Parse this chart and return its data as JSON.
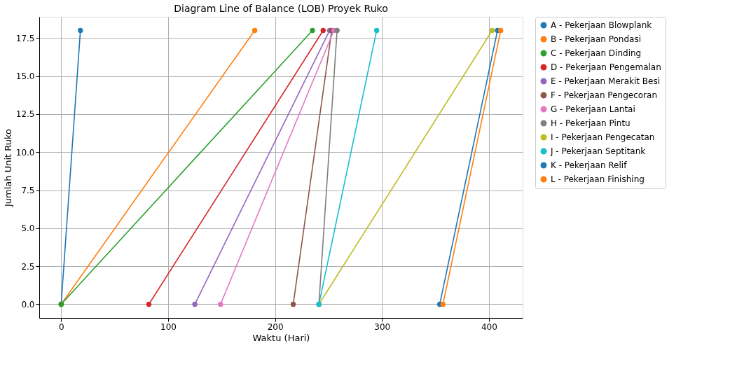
{
  "chart_data": {
    "type": "line",
    "title": "Diagram Line of Balance (LOB) Proyek Ruko",
    "xlabel": "Waktu (Hari)",
    "ylabel": "Jumlah Unit Ruko",
    "series": [
      {
        "name": "A - Pekerjaan Blowplank",
        "color": "#1f77b4",
        "x": [
          0,
          18
        ],
        "values": [
          0,
          18
        ]
      },
      {
        "name": "B - Pekerjaan Pondasi",
        "color": "#ff7f0e",
        "x": [
          0,
          181
        ],
        "values": [
          0,
          18
        ]
      },
      {
        "name": "C - Pekerjaan Dinding",
        "color": "#2ca02c",
        "x": [
          0,
          235
        ],
        "values": [
          0,
          18
        ]
      },
      {
        "name": "D - Pekerjaan Pengemalan",
        "color": "#d62728",
        "x": [
          82,
          245
        ],
        "values": [
          0,
          18
        ]
      },
      {
        "name": "E - Pekerjaan Merakit Besi",
        "color": "#9467bd",
        "x": [
          125,
          251
        ],
        "values": [
          0,
          18
        ]
      },
      {
        "name": "F - Pekerjaan Pengecoran",
        "color": "#8c564b",
        "x": [
          217,
          253
        ],
        "values": [
          0,
          18
        ]
      },
      {
        "name": "G - Pekerjaan Lantai",
        "color": "#e377c2",
        "x": [
          149,
          255
        ],
        "values": [
          0,
          18
        ]
      },
      {
        "name": "H - Pekerjaan Pintu",
        "color": "#7f7f7f",
        "x": [
          241,
          258
        ],
        "values": [
          0,
          18
        ]
      },
      {
        "name": "I - Pekerjaan Pengecatan",
        "color": "#bcbd22",
        "x": [
          241,
          403
        ],
        "values": [
          0,
          18
        ]
      },
      {
        "name": "J - Pekerjaan Septitank",
        "color": "#17becf",
        "x": [
          241,
          295
        ],
        "values": [
          0,
          18
        ]
      },
      {
        "name": "K - Pekerjaan Relif",
        "color": "#1f77b4",
        "x": [
          354,
          408
        ],
        "values": [
          0,
          18
        ]
      },
      {
        "name": "L - Pekerjaan Finishing",
        "color": "#ff7f0e",
        "x": [
          357,
          411
        ],
        "values": [
          0,
          18
        ]
      }
    ],
    "xlim": [
      -20.5,
      431.5
    ],
    "xticks": [
      0,
      100,
      200,
      300,
      400
    ],
    "ylim": [
      -0.9,
      18.9
    ],
    "yticks": [
      {
        "value": 0,
        "label": "0.0"
      },
      {
        "value": 2.5,
        "label": "2.5"
      },
      {
        "value": 5,
        "label": "5.0"
      },
      {
        "value": 7.5,
        "label": "7.5"
      },
      {
        "value": 10,
        "label": "10.0"
      },
      {
        "value": 12.5,
        "label": "12.5"
      },
      {
        "value": 15,
        "label": "15.0"
      },
      {
        "value": 17.5,
        "label": "17.5"
      }
    ],
    "grid": true,
    "legend": "right",
    "marker": "circle",
    "line_style": "solid"
  }
}
